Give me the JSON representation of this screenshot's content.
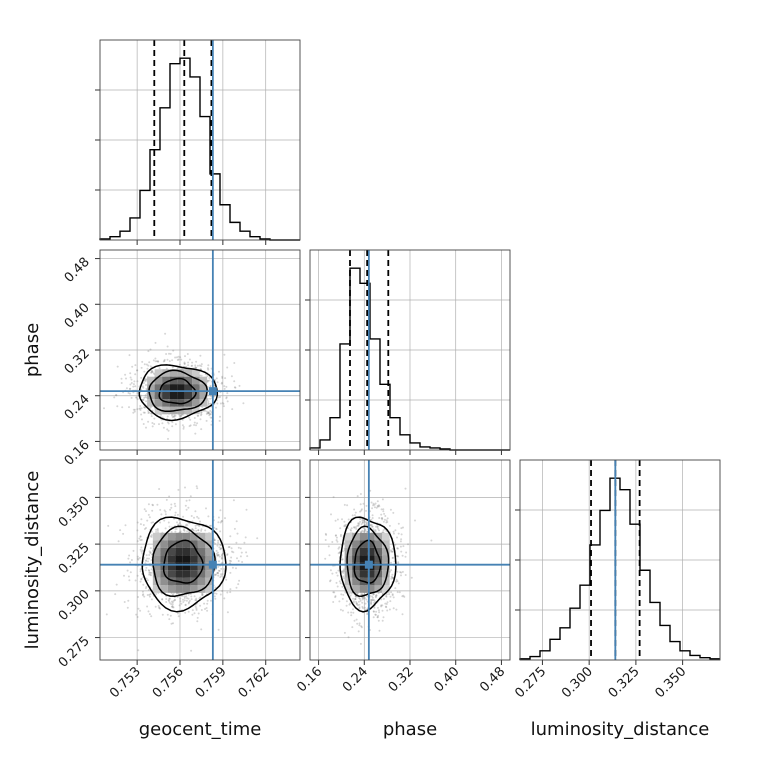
{
  "chart_data": {
    "type": "corner",
    "parameters": [
      "geocent_time",
      "phase",
      "luminosity_distance"
    ],
    "axis_labels": [
      "geocent_time",
      "phase",
      "luminosity_distance"
    ],
    "ranges": {
      "geocent_time": [
        0.7504,
        0.7644
      ],
      "phase": [
        0.145,
        0.495
      ],
      "luminosity_distance": [
        0.263,
        0.37
      ]
    },
    "ticks": {
      "geocent_time": [
        "0.753",
        "0.756",
        "0.759",
        "0.762"
      ],
      "phase": [
        "0.16",
        "0.24",
        "0.32",
        "0.40",
        "0.48"
      ],
      "luminosity_distance": [
        "0.275",
        "0.300",
        "0.325",
        "0.350"
      ]
    },
    "injection": {
      "geocent_time": 0.7583,
      "phase": 0.248,
      "luminosity_distance": 0.314
    },
    "quantiles": {
      "geocent_time": [
        0.7542,
        0.7563,
        0.7582
      ],
      "phase": [
        0.215,
        0.245,
        0.282
      ],
      "luminosity_distance": [
        0.301,
        0.314,
        0.327
      ]
    },
    "histograms": {
      "geocent_time": {
        "edges": [
          0.7504,
          0.7511,
          0.7518,
          0.7525,
          0.7532,
          0.7539,
          0.7546,
          0.7553,
          0.756,
          0.7567,
          0.7574,
          0.7581,
          0.7588,
          0.7595,
          0.7602,
          0.7609,
          0.7616,
          0.7623,
          0.763,
          0.7637,
          0.7644
        ],
        "counts": [
          1,
          3,
          8,
          20,
          45,
          82,
          120,
          160,
          165,
          148,
          112,
          60,
          32,
          16,
          8,
          3,
          1,
          0,
          0,
          0
        ]
      },
      "phase": {
        "edges": [
          0.145,
          0.1625,
          0.18,
          0.1975,
          0.215,
          0.2325,
          0.25,
          0.2675,
          0.285,
          0.3025,
          0.32,
          0.3375,
          0.355,
          0.3725,
          0.39,
          0.4075,
          0.425,
          0.4425,
          0.46,
          0.4775,
          0.495
        ],
        "counts": [
          2,
          10,
          32,
          105,
          180,
          165,
          110,
          65,
          32,
          15,
          7,
          3,
          2,
          1,
          0,
          0,
          0,
          0,
          0,
          0
        ]
      },
      "luminosity_distance": {
        "edges": [
          0.263,
          0.26835,
          0.2737,
          0.27905,
          0.2844,
          0.28975,
          0.2951,
          0.30045,
          0.3058,
          0.31115,
          0.3165,
          0.32185,
          0.3272,
          0.33255,
          0.3379,
          0.34325,
          0.3486,
          0.35395,
          0.3593,
          0.36465,
          0.37
        ],
        "counts": [
          1,
          3,
          8,
          18,
          28,
          45,
          65,
          100,
          130,
          158,
          148,
          118,
          78,
          50,
          30,
          16,
          8,
          4,
          2,
          1
        ]
      }
    },
    "posterior_2d": {
      "phase_vs_geocent_time": {
        "center": [
          0.7558,
          0.247
        ],
        "sigma": [
          0.0014,
          0.024
        ]
      },
      "luminosity_distance_vs_geocent_time": {
        "center": [
          0.7562,
          0.315
        ],
        "sigma": [
          0.0015,
          0.0125
        ]
      },
      "luminosity_distance_vs_phase": {
        "center": [
          0.245,
          0.315
        ],
        "sigma": [
          0.025,
          0.0125
        ]
      }
    },
    "colors": {
      "injection": "#4682b4",
      "histogram": "#000000",
      "contour": "#000000",
      "samples": "#999999"
    }
  }
}
